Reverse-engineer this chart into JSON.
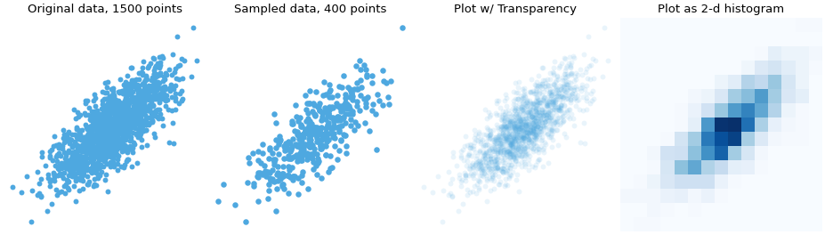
{
  "titles": [
    "Original data, 1500 points",
    "Sampled data, 400 points",
    "Plot w/ Transparency",
    "Plot as 2-d histogram"
  ],
  "n_total": 1500,
  "n_sample": 400,
  "random_seed": 42,
  "scatter_color": "#4ea8e0",
  "scatter_alpha_full": 1.0,
  "scatter_alpha_transparent": 0.12,
  "scatter_size_full": 18,
  "scatter_size_sample": 22,
  "scatter_size_transparent": 18,
  "hist2d_bins": 15,
  "hist2d_cmap": "Blues",
  "figsize": [
    9.28,
    2.64
  ],
  "dpi": 100,
  "title_fontsize": 9.5,
  "bg_color": "white",
  "noise_scale": 0.55
}
